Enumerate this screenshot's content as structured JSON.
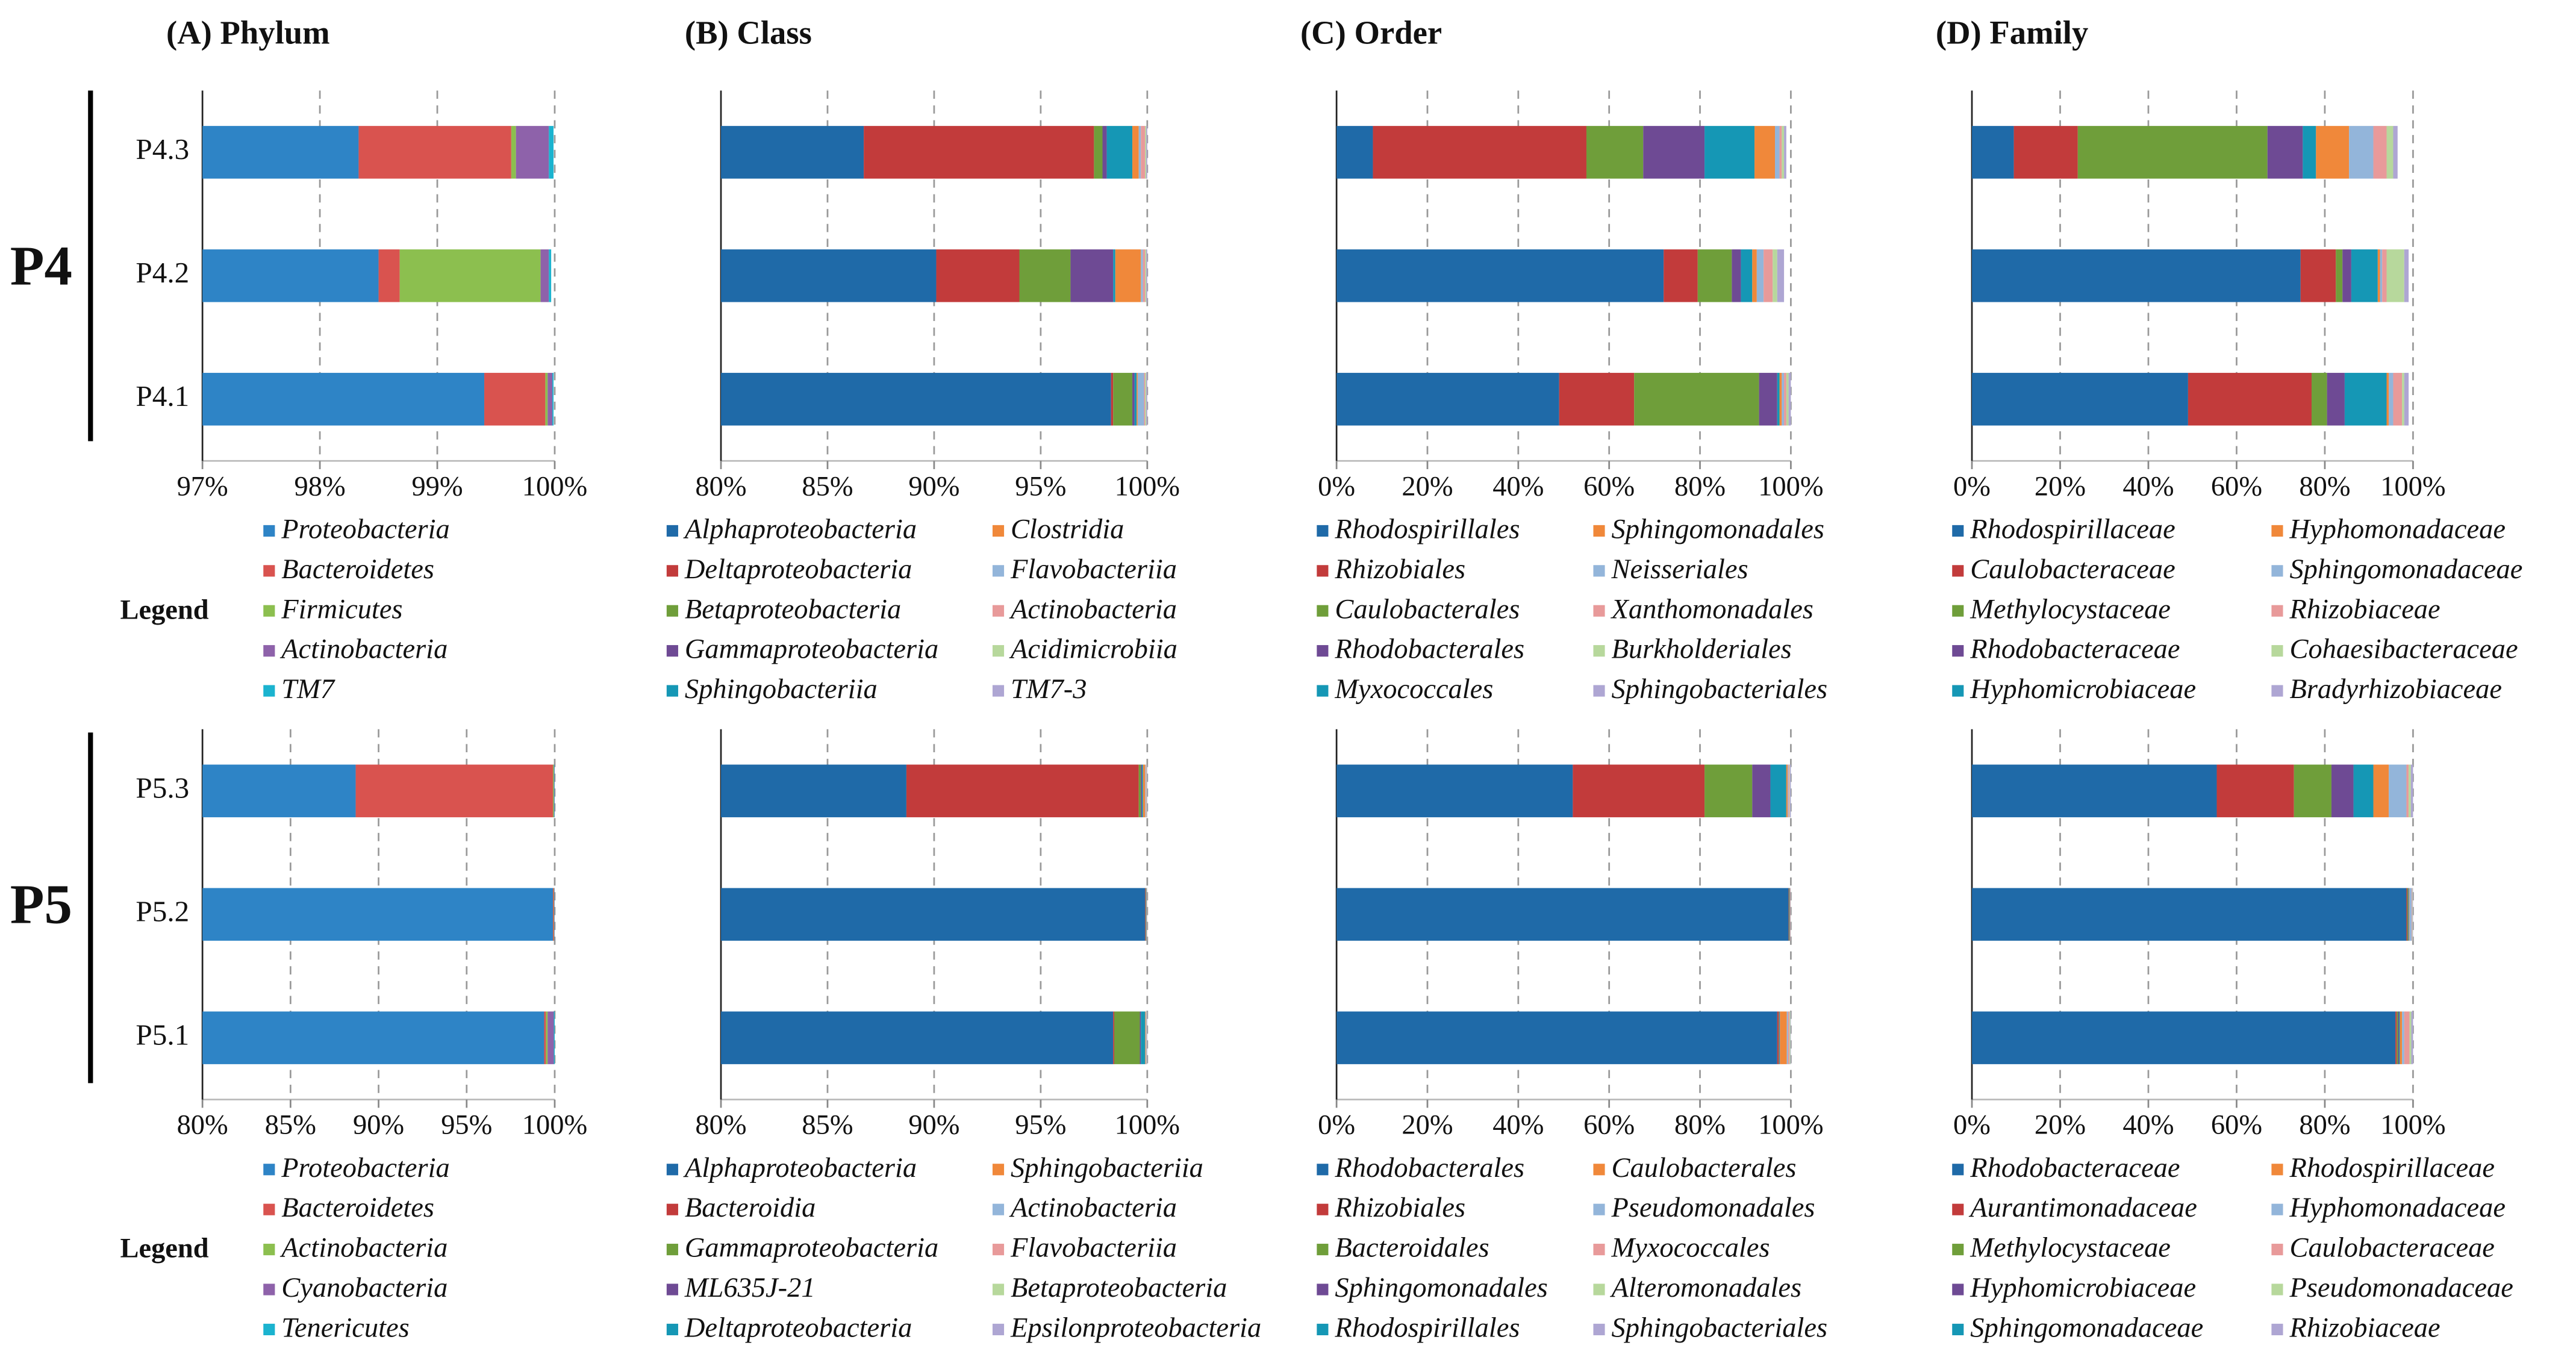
{
  "groups": [
    {
      "label": "P4",
      "legend_title": "Legend"
    },
    {
      "label": "P5",
      "legend_title": "Legend"
    }
  ],
  "chart_data": [
    {
      "type": "bar",
      "title": "(A) Phylum",
      "categories": [
        "P4.1",
        "P4.2",
        "P4.3"
      ],
      "xlim": [
        97,
        100
      ],
      "xticks": [
        {
          "value": 97,
          "label": "97%"
        },
        {
          "value": 98,
          "label": "98%"
        },
        {
          "value": 99,
          "label": "99%"
        },
        {
          "value": 100,
          "label": "100%"
        }
      ],
      "grid": true,
      "series": [
        {
          "name": "Proteobacteria",
          "color": "#2e84c6",
          "values": [
            99.4,
            98.5,
            98.33
          ]
        },
        {
          "name": "Bacteroidetes",
          "color": "#d9534f",
          "values": [
            0.52,
            0.18,
            1.3
          ]
        },
        {
          "name": "Firmicutes",
          "color": "#8cbf4f",
          "values": [
            0.02,
            1.2,
            0.04
          ]
        },
        {
          "name": "Actinobacteria",
          "color": "#8e62aa",
          "values": [
            0.04,
            0.07,
            0.28
          ]
        },
        {
          "name": "TM7",
          "color": "#1bb3cf",
          "values": [
            0.01,
            0.02,
            0.04
          ]
        }
      ]
    },
    {
      "type": "bar",
      "title": "(B) Class",
      "categories": [
        null,
        null,
        null
      ],
      "xlim": [
        80,
        100
      ],
      "xticks": [
        {
          "value": 80,
          "label": "80%"
        },
        {
          "value": 85,
          "label": "85%"
        },
        {
          "value": 90,
          "label": "90%"
        },
        {
          "value": 95,
          "label": "95%"
        },
        {
          "value": 100,
          "label": "100%"
        }
      ],
      "grid": true,
      "series": [
        {
          "name": "Alphaproteobacteria",
          "color": "#1f6aa8",
          "values": [
            98.3,
            90.1,
            86.7
          ]
        },
        {
          "name": "Deltaproteobacteria",
          "color": "#c23b3b",
          "values": [
            0.1,
            3.9,
            10.8
          ]
        },
        {
          "name": "Betaproteobacteria",
          "color": "#6f9e3a",
          "values": [
            0.9,
            2.4,
            0.4
          ]
        },
        {
          "name": "Gammaproteobacteria",
          "color": "#6e4a94",
          "values": [
            0.1,
            2.0,
            0.2
          ]
        },
        {
          "name": "Sphingobacteriia",
          "color": "#1597b5",
          "values": [
            0.1,
            0.1,
            1.2
          ]
        },
        {
          "name": "Clostridia",
          "color": "#f0883a",
          "values": [
            0.05,
            1.2,
            0.3
          ]
        },
        {
          "name": "Flavobacteriia",
          "color": "#93b5da",
          "values": [
            0.3,
            0.1,
            0.1
          ]
        },
        {
          "name": "Actinobacteria",
          "color": "#e89a9a",
          "values": [
            0.05,
            0.1,
            0.2
          ]
        },
        {
          "name": "Acidimicrobiia",
          "color": "#b7d89c",
          "values": [
            0.05,
            0.05,
            0.05
          ]
        },
        {
          "name": "TM7-3",
          "color": "#aea6d3",
          "values": [
            0.05,
            0.05,
            0.05
          ]
        }
      ]
    },
    {
      "type": "bar",
      "title": "(C) Order",
      "categories": [
        null,
        null,
        null
      ],
      "xlim": [
        0,
        100
      ],
      "xticks": [
        {
          "value": 0,
          "label": "0%"
        },
        {
          "value": 20,
          "label": "20%"
        },
        {
          "value": 40,
          "label": "40%"
        },
        {
          "value": 60,
          "label": "60%"
        },
        {
          "value": 80,
          "label": "80%"
        },
        {
          "value": 100,
          "label": "100%"
        }
      ],
      "grid": true,
      "series": [
        {
          "name": "Rhodospirillales",
          "color": "#1f6aa8",
          "values": [
            49,
            72,
            8
          ]
        },
        {
          "name": "Rhizobiales",
          "color": "#c23b3b",
          "values": [
            16.5,
            7.5,
            47
          ]
        },
        {
          "name": "Caulobacterales",
          "color": "#6f9e3a",
          "values": [
            27.5,
            7.5,
            12.5
          ]
        },
        {
          "name": "Rhodobacterales",
          "color": "#6e4a94",
          "values": [
            4,
            2,
            13.5
          ]
        },
        {
          "name": "Myxococcales",
          "color": "#1597b5",
          "values": [
            0.5,
            2.5,
            11
          ]
        },
        {
          "name": "Sphingomonadales",
          "color": "#f0883a",
          "values": [
            0.5,
            1,
            4.5
          ]
        },
        {
          "name": "Neisseriales",
          "color": "#93b5da",
          "values": [
            0.5,
            1.5,
            1
          ]
        },
        {
          "name": "Xanthomonadales",
          "color": "#e89a9a",
          "values": [
            0.5,
            2,
            0.5
          ]
        },
        {
          "name": "Burkholderiales",
          "color": "#b7d89c",
          "values": [
            0.5,
            1,
            0.5
          ]
        },
        {
          "name": "Sphingobacteriales",
          "color": "#aea6d3",
          "values": [
            0.5,
            1.5,
            0.5
          ]
        }
      ]
    },
    {
      "type": "bar",
      "title": "(D) Family",
      "categories": [
        null,
        null,
        null
      ],
      "xlim": [
        0,
        100
      ],
      "xticks": [
        {
          "value": 0,
          "label": "0%"
        },
        {
          "value": 20,
          "label": "20%"
        },
        {
          "value": 40,
          "label": "40%"
        },
        {
          "value": 60,
          "label": "60%"
        },
        {
          "value": 80,
          "label": "80%"
        },
        {
          "value": 100,
          "label": "100%"
        }
      ],
      "grid": true,
      "series": [
        {
          "name": "Rhodospirillaceae",
          "color": "#1f6aa8",
          "values": [
            49,
            74.5,
            9.5
          ]
        },
        {
          "name": "Caulobacteraceae",
          "color": "#c23b3b",
          "values": [
            28,
            8,
            14.5
          ]
        },
        {
          "name": "Methylocystaceae",
          "color": "#6f9e3a",
          "values": [
            3.5,
            1.5,
            43
          ]
        },
        {
          "name": "Rhodobacteraceae",
          "color": "#6e4a94",
          "values": [
            4,
            2,
            8
          ]
        },
        {
          "name": "Hyphomicrobiaceae",
          "color": "#1597b5",
          "values": [
            9.5,
            6,
            3
          ]
        },
        {
          "name": "Hyphomonadaceae",
          "color": "#f0883a",
          "values": [
            0.5,
            0.5,
            7.5
          ]
        },
        {
          "name": "Sphingomonadaceae",
          "color": "#93b5da",
          "values": [
            1,
            0.5,
            5.5
          ]
        },
        {
          "name": "Rhizobiaceae",
          "color": "#e89a9a",
          "values": [
            2,
            1,
            3
          ]
        },
        {
          "name": "Cohaesibacteraceae",
          "color": "#b7d89c",
          "values": [
            0.5,
            4,
            1.5
          ]
        },
        {
          "name": "Bradyrhizobiaceae",
          "color": "#aea6d3",
          "values": [
            1,
            1,
            1
          ]
        }
      ]
    },
    {
      "type": "bar",
      "categories": [
        "P5.1",
        "P5.2",
        "P5.3"
      ],
      "xlim": [
        80,
        100
      ],
      "xticks": [
        {
          "value": 80,
          "label": "80%"
        },
        {
          "value": 85,
          "label": "85%"
        },
        {
          "value": 90,
          "label": "90%"
        },
        {
          "value": 95,
          "label": "95%"
        },
        {
          "value": 100,
          "label": "100%"
        }
      ],
      "grid": true,
      "series": [
        {
          "name": "Proteobacteria",
          "color": "#2e84c6",
          "values": [
            99.4,
            99.9,
            88.7
          ]
        },
        {
          "name": "Bacteroidetes",
          "color": "#d9534f",
          "values": [
            0.1,
            0.05,
            11.2
          ]
        },
        {
          "name": "Actinobacteria",
          "color": "#8cbf4f",
          "values": [
            0.1,
            0.02,
            0.05
          ]
        },
        {
          "name": "Cyanobacteria",
          "color": "#8e62aa",
          "values": [
            0.35,
            0.02,
            0.03
          ]
        },
        {
          "name": "Tenericutes",
          "color": "#1bb3cf",
          "values": [
            0.05,
            0.01,
            0.02
          ]
        }
      ]
    },
    {
      "type": "bar",
      "categories": [
        null,
        null,
        null
      ],
      "xlim": [
        80,
        100
      ],
      "xticks": [
        {
          "value": 80,
          "label": "80%"
        },
        {
          "value": 85,
          "label": "85%"
        },
        {
          "value": 90,
          "label": "90%"
        },
        {
          "value": 95,
          "label": "95%"
        },
        {
          "value": 100,
          "label": "100%"
        }
      ],
      "grid": true,
      "series": [
        {
          "name": "Alphaproteobacteria",
          "color": "#1f6aa8",
          "values": [
            98.4,
            99.9,
            88.7
          ]
        },
        {
          "name": "Bacteroidia",
          "color": "#c23b3b",
          "values": [
            0.05,
            0.02,
            10.9
          ]
        },
        {
          "name": "Gammaproteobacteria",
          "color": "#6f9e3a",
          "values": [
            1.2,
            0.02,
            0.1
          ]
        },
        {
          "name": "ML635J-21",
          "color": "#6e4a94",
          "values": [
            0.05,
            0.01,
            0.05
          ]
        },
        {
          "name": "Deltaproteobacteria",
          "color": "#1597b5",
          "values": [
            0.2,
            0.01,
            0.05
          ]
        },
        {
          "name": "Sphingobacteriia",
          "color": "#f0883a",
          "values": [
            0.02,
            0.01,
            0.1
          ]
        },
        {
          "name": "Actinobacteria",
          "color": "#93b5da",
          "values": [
            0.02,
            0.01,
            0.03
          ]
        },
        {
          "name": "Flavobacteriia",
          "color": "#e89a9a",
          "values": [
            0.02,
            0.01,
            0.03
          ]
        },
        {
          "name": "Betaproteobacteria",
          "color": "#b7d89c",
          "values": [
            0.02,
            0.005,
            0.02
          ]
        },
        {
          "name": "Epsilonproteobacteria",
          "color": "#aea6d3",
          "values": [
            0.02,
            0.005,
            0.02
          ]
        }
      ]
    },
    {
      "type": "bar",
      "categories": [
        null,
        null,
        null
      ],
      "xlim": [
        0,
        100
      ],
      "xticks": [
        {
          "value": 0,
          "label": "0%"
        },
        {
          "value": 20,
          "label": "20%"
        },
        {
          "value": 40,
          "label": "40%"
        },
        {
          "value": 60,
          "label": "60%"
        },
        {
          "value": 80,
          "label": "80%"
        },
        {
          "value": 100,
          "label": "100%"
        }
      ],
      "grid": true,
      "series": [
        {
          "name": "Rhodobacterales",
          "color": "#1f6aa8",
          "values": [
            97,
            99.5,
            52
          ]
        },
        {
          "name": "Rhizobiales",
          "color": "#c23b3b",
          "values": [
            0.3,
            0.1,
            29
          ]
        },
        {
          "name": "Bacteroidales",
          "color": "#6f9e3a",
          "values": [
            0.1,
            0.1,
            10.5
          ]
        },
        {
          "name": "Sphingomonadales",
          "color": "#6e4a94",
          "values": [
            0.1,
            0.05,
            4
          ]
        },
        {
          "name": "Rhodospirillales",
          "color": "#1597b5",
          "values": [
            0.1,
            0.05,
            3.5
          ]
        },
        {
          "name": "Caulobacterales",
          "color": "#f0883a",
          "values": [
            1.5,
            0.05,
            0.3
          ]
        },
        {
          "name": "Pseudomonadales",
          "color": "#93b5da",
          "values": [
            0.3,
            0.05,
            0.2
          ]
        },
        {
          "name": "Myxococcales",
          "color": "#e89a9a",
          "values": [
            0.3,
            0.05,
            0.2
          ]
        },
        {
          "name": "Alteromonadales",
          "color": "#b7d89c",
          "values": [
            0.2,
            0.025,
            0.1
          ]
        },
        {
          "name": "Sphingobacteriales",
          "color": "#aea6d3",
          "values": [
            0.1,
            0.025,
            0.2
          ]
        }
      ]
    },
    {
      "type": "bar",
      "categories": [
        null,
        null,
        null
      ],
      "xlim": [
        0,
        100
      ],
      "xticks": [
        {
          "value": 0,
          "label": "0%"
        },
        {
          "value": 20,
          "label": "20%"
        },
        {
          "value": 40,
          "label": "40%"
        },
        {
          "value": 60,
          "label": "60%"
        },
        {
          "value": 80,
          "label": "80%"
        },
        {
          "value": 100,
          "label": "100%"
        }
      ],
      "grid": true,
      "series": [
        {
          "name": "Rhodobacteraceae",
          "color": "#1f6aa8",
          "values": [
            96,
            98.5,
            55.5
          ]
        },
        {
          "name": "Aurantimonadaceae",
          "color": "#c23b3b",
          "values": [
            0.3,
            0.2,
            17.5
          ]
        },
        {
          "name": "Methylocystaceae",
          "color": "#6f9e3a",
          "values": [
            0.3,
            0.2,
            8.5
          ]
        },
        {
          "name": "Hyphomicrobiaceae",
          "color": "#6e4a94",
          "values": [
            0.2,
            0.1,
            5
          ]
        },
        {
          "name": "Sphingomonadaceae",
          "color": "#1597b5",
          "values": [
            0.2,
            0.1,
            4.5
          ]
        },
        {
          "name": "Rhodospirillaceae",
          "color": "#f0883a",
          "values": [
            0.5,
            0.1,
            3.5
          ]
        },
        {
          "name": "Hyphomonadaceae",
          "color": "#93b5da",
          "values": [
            0.5,
            0.5,
            4
          ]
        },
        {
          "name": "Caulobacteraceae",
          "color": "#e89a9a",
          "values": [
            1.2,
            0.1,
            0.5
          ]
        },
        {
          "name": "Pseudomonadaceae",
          "color": "#b7d89c",
          "values": [
            0.4,
            0.1,
            0.5
          ]
        },
        {
          "name": "Rhizobiaceae",
          "color": "#aea6d3",
          "values": [
            0.4,
            0.1,
            0.5
          ]
        }
      ]
    }
  ]
}
